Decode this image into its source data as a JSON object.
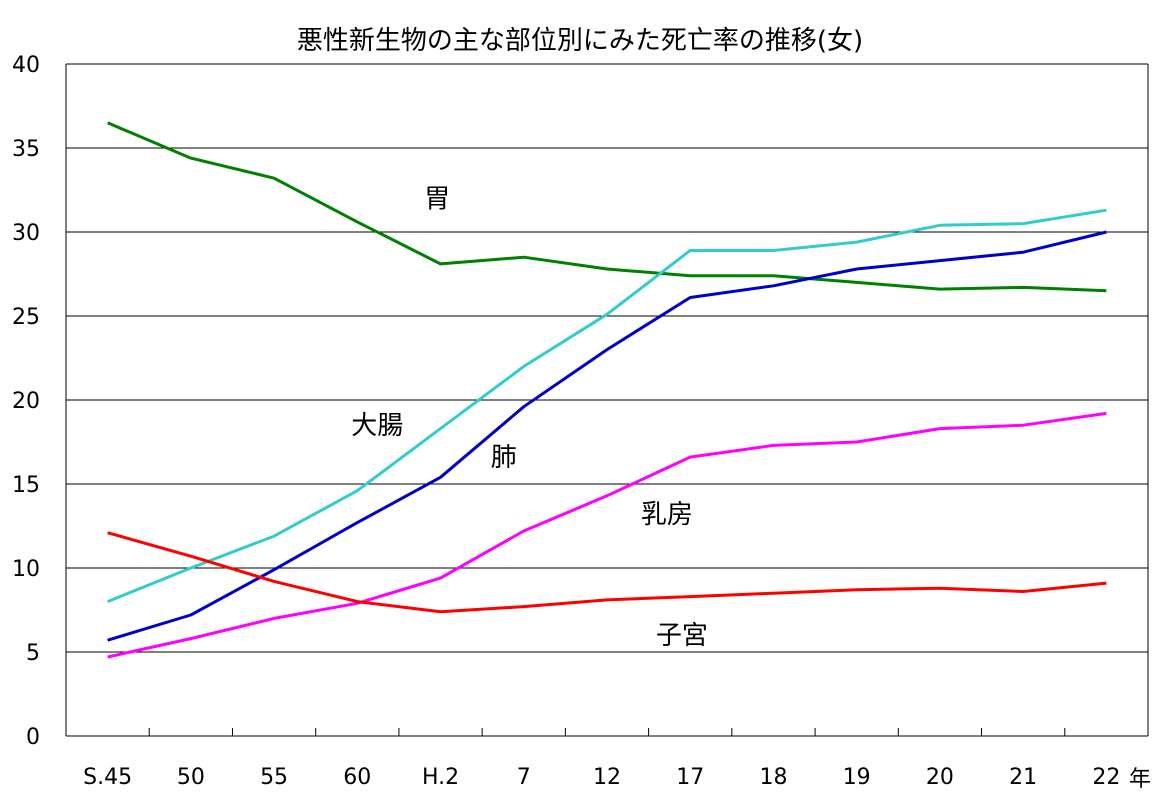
{
  "chart_data": {
    "type": "line",
    "title": "悪性新生物の主な部位別にみた死亡率の推移(女)",
    "xlabel": "年",
    "ylabel": "",
    "ylim": [
      0,
      40
    ],
    "yticks": [
      0,
      5,
      10,
      15,
      20,
      25,
      30,
      35,
      40
    ],
    "grid": true,
    "legend": "none",
    "categories": [
      "S.45",
      "50",
      "55",
      "60",
      "H.2",
      "7",
      "12",
      "17",
      "18",
      "19",
      "20",
      "21",
      "22"
    ],
    "series": [
      {
        "name": "胃",
        "color": "#008000",
        "values": [
          36.5,
          34.4,
          33.2,
          30.6,
          28.1,
          28.5,
          27.8,
          27.4,
          27.4,
          27.0,
          26.6,
          26.7,
          26.5
        ]
      },
      {
        "name": "大腸",
        "color": "#33cccc",
        "values": [
          8.0,
          10.0,
          11.9,
          14.6,
          18.3,
          22.0,
          25.1,
          28.9,
          28.9,
          29.4,
          30.4,
          30.5,
          31.3
        ]
      },
      {
        "name": "肺",
        "color": "#0000cc",
        "values": [
          5.7,
          7.2,
          9.9,
          12.7,
          15.4,
          19.6,
          23.0,
          26.1,
          26.8,
          27.8,
          28.3,
          28.8,
          30.0
        ]
      },
      {
        "name": "乳房",
        "color": "#ff00ff",
        "values": [
          4.7,
          5.8,
          7.0,
          7.9,
          9.4,
          12.2,
          14.3,
          16.6,
          17.3,
          17.5,
          18.3,
          18.5,
          19.2
        ]
      },
      {
        "name": "子宮",
        "color": "#ff0000",
        "values": [
          12.1,
          10.7,
          9.2,
          8.0,
          7.4,
          7.7,
          8.1,
          8.3,
          8.5,
          8.7,
          8.8,
          8.6,
          9.1
        ]
      }
    ],
    "series_labels": [
      {
        "text": "胃",
        "series": "胃",
        "x": 3.96,
        "y": 32.0
      },
      {
        "text": "大腸",
        "series": "大腸",
        "x": 3.24,
        "y": 18.5
      },
      {
        "text": "肺",
        "series": "肺",
        "x": 4.76,
        "y": 16.6
      },
      {
        "text": "乳房",
        "series": "乳房",
        "x": 6.72,
        "y": 13.2
      },
      {
        "text": "子宮",
        "series": "子宮",
        "x": 6.9,
        "y": 6.0
      }
    ]
  }
}
